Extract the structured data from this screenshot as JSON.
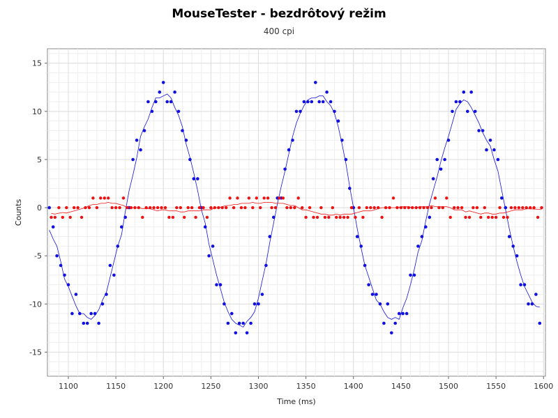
{
  "chart_data": {
    "type": "scatter",
    "title": "MouseTester - bezdrôtový režim",
    "subtitle": "400 cpi",
    "xlabel": "Time (ms)",
    "ylabel": "Counts",
    "xlim": [
      1078,
      1602
    ],
    "ylim": [
      -17.5,
      16.5
    ],
    "xticks": [
      1100,
      1150,
      1200,
      1250,
      1300,
      1350,
      1400,
      1450,
      1500,
      1550,
      1600
    ],
    "yticks": [
      -15,
      -10,
      -5,
      0,
      5,
      10,
      15
    ],
    "grid": true,
    "legend": "none",
    "colors": {
      "x_counts": "#1010e0",
      "y_counts": "#ee1111"
    },
    "x_counts_model": {
      "form": "sine",
      "amplitude": 11.5,
      "period_ms": 160,
      "peak_ms": 1200,
      "offset": 0.0,
      "step_ms": 4,
      "x_start": 1080,
      "x_end": 1598
    },
    "y_counts_model": {
      "form": "jitter",
      "values": [
        -1,
        0,
        1
      ],
      "step_ms": 4,
      "x_start": 1082,
      "x_end": 1598
    },
    "annotations": []
  }
}
